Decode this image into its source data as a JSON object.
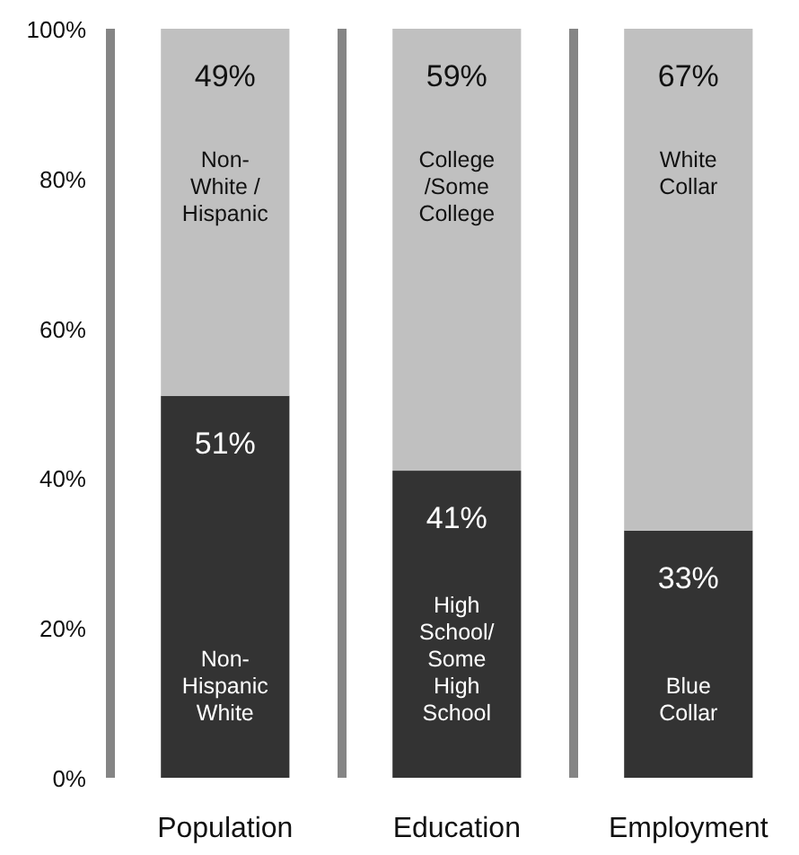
{
  "chart_data": {
    "type": "bar",
    "stacked": true,
    "categories": [
      "Population",
      "Education",
      "Employment"
    ],
    "series": [
      {
        "color": "#333333",
        "values": [
          51,
          41,
          33
        ],
        "value_labels": [
          "51%",
          "41%",
          "33%"
        ]
      },
      {
        "color": "#c0c0c0",
        "values": [
          49,
          59,
          67
        ],
        "value_labels": [
          "49%",
          "59%",
          "67%"
        ]
      }
    ],
    "ylim": [
      0,
      100
    ],
    "yticks": [
      {
        "value": 0,
        "label": "0%"
      },
      {
        "value": 20,
        "label": "20%"
      },
      {
        "value": 40,
        "label": "40%"
      },
      {
        "value": 60,
        "label": "60%"
      },
      {
        "value": 80,
        "label": "80%"
      },
      {
        "value": 100,
        "label": "100%"
      }
    ],
    "annotations": [
      "Non-\nWhite /\nHispanic",
      "Non-\nHispanic\nWhite",
      "College\n/Some\nCollege",
      "High\nSchool/\nSome\nHigh\nSchool",
      "White\nCollar",
      "Blue\nCollar"
    ]
  }
}
